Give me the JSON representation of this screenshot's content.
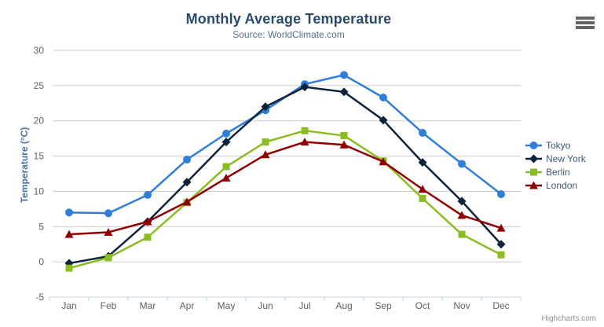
{
  "credits": "Highcharts.com",
  "icons": {
    "export_menu": "hamburger-menu-icon"
  },
  "chart_data": {
    "type": "line",
    "title": "Monthly Average Temperature",
    "subtitle": "Source: WorldClimate.com",
    "xlabel": "",
    "ylabel": "Temperature (°C)",
    "categories": [
      "Jan",
      "Feb",
      "Mar",
      "Apr",
      "May",
      "Jun",
      "Jul",
      "Aug",
      "Sep",
      "Oct",
      "Nov",
      "Dec"
    ],
    "series": [
      {
        "name": "Tokyo",
        "color": "#2f7ed8",
        "marker": "circle",
        "values": [
          7.0,
          6.9,
          9.5,
          14.5,
          18.2,
          21.5,
          25.2,
          26.5,
          23.3,
          18.3,
          13.9,
          9.6
        ]
      },
      {
        "name": "New York",
        "color": "#0d233a",
        "marker": "diamond",
        "values": [
          -0.2,
          0.8,
          5.7,
          11.3,
          17.0,
          22.0,
          24.8,
          24.1,
          20.1,
          14.1,
          8.6,
          2.5
        ]
      },
      {
        "name": "Berlin",
        "color": "#8bbc21",
        "marker": "square",
        "values": [
          -0.9,
          0.6,
          3.5,
          8.4,
          13.5,
          17.0,
          18.6,
          17.9,
          14.3,
          9.0,
          3.9,
          1.0
        ]
      },
      {
        "name": "London",
        "color": "#910000",
        "marker": "triangle",
        "values": [
          3.9,
          4.2,
          5.7,
          8.5,
          11.9,
          15.2,
          17.0,
          16.6,
          14.2,
          10.3,
          6.6,
          4.8
        ]
      }
    ],
    "ylim": [
      -5,
      30
    ],
    "ytick_interval": 5,
    "grid": true,
    "legend_position": "right",
    "colors": {
      "gridline": "#cccccc",
      "axis_line": "#c0d0e0",
      "axis_label": "#606060",
      "title": "#274b6d",
      "subtitle": "#50708e",
      "legend_text": "#3e576f"
    }
  }
}
